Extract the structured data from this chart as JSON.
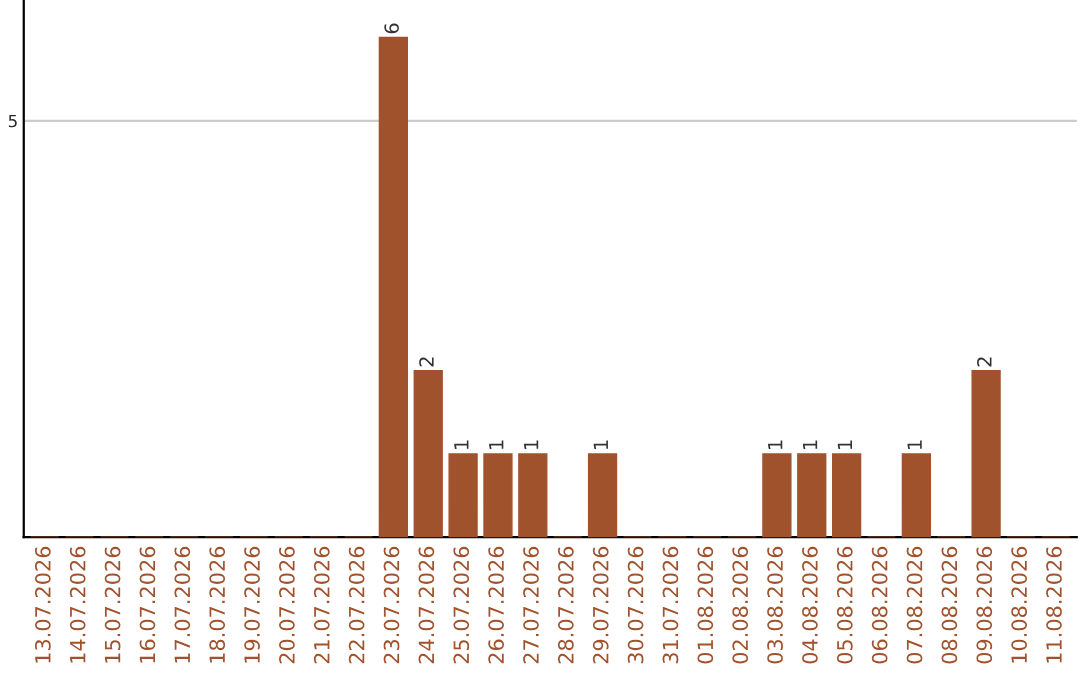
{
  "chart_data": {
    "type": "bar",
    "categories": [
      "13.07.2026",
      "14.07.2026",
      "15.07.2026",
      "16.07.2026",
      "17.07.2026",
      "18.07.2026",
      "19.07.2026",
      "20.07.2026",
      "21.07.2026",
      "22.07.2026",
      "23.07.2026",
      "24.07.2026",
      "25.07.2026",
      "26.07.2026",
      "27.07.2026",
      "28.07.2026",
      "29.07.2026",
      "30.07.2026",
      "31.07.2026",
      "01.08.2026",
      "02.08.2026",
      "03.08.2026",
      "04.08.2026",
      "05.08.2026",
      "06.08.2026",
      "07.08.2026",
      "08.08.2026",
      "09.08.2026",
      "10.08.2026",
      "11.08.2026"
    ],
    "values": [
      0,
      0,
      0,
      0,
      0,
      0,
      0,
      0,
      0,
      0,
      6,
      2,
      1,
      1,
      1,
      0,
      1,
      0,
      0,
      0,
      0,
      1,
      1,
      1,
      0,
      1,
      0,
      2,
      0,
      0
    ],
    "value_labels": [
      null,
      null,
      null,
      null,
      null,
      null,
      null,
      null,
      null,
      null,
      "6",
      "2",
      "1",
      "1",
      "1",
      null,
      "1",
      null,
      null,
      null,
      null,
      "1",
      "1",
      "1",
      null,
      "1",
      null,
      "2",
      null,
      null
    ],
    "color": "#a0522d",
    "ylim": [
      0,
      6.45
    ],
    "yticks": [
      5
    ],
    "grid": "y",
    "legend": false
  }
}
